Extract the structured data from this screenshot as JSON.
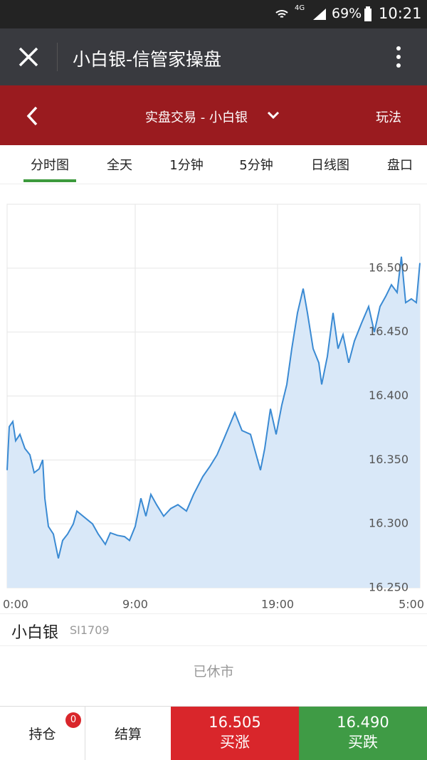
{
  "status_bar": {
    "network": "4G",
    "battery": "69%",
    "time": "10:21"
  },
  "app_bar": {
    "title": "小白银-信管家操盘"
  },
  "header": {
    "title": "实盘交易 - 小白银",
    "action": "玩法"
  },
  "tabs": [
    "分时图",
    "全天",
    "1分钟",
    "5分钟",
    "日线图",
    "盘口"
  ],
  "chart_data": {
    "type": "area",
    "x": [
      0,
      0.15,
      0.4,
      0.6,
      0.9,
      1.25,
      1.6,
      1.9,
      2.25,
      2.5,
      2.65,
      2.9,
      3.25,
      3.6,
      3.9,
      4.25,
      4.65,
      4.9,
      6,
      6.4,
      6.9,
      7.25,
      7.75,
      8.25,
      8.6,
      9,
      9.4,
      9.75,
      10.1,
      10.5,
      11,
      11.5,
      12,
      12.6,
      13.1,
      13.75,
      14.25,
      14.75,
      15.25,
      16,
      16.5,
      17.1,
      17.5,
      17.8,
      18.1,
      18.5,
      18.9,
      19.3,
      19.65,
      20,
      20.4,
      20.8,
      21.1,
      21.5,
      21.9,
      22.1,
      22.5,
      22.9,
      23.25,
      23.6,
      24,
      24.4,
      24.9,
      25.4,
      25.8,
      26.2,
      26.6,
      27,
      27.4,
      27.7,
      28,
      28.4,
      28.75,
      29
    ],
    "values": [
      16.342,
      16.376,
      16.38,
      16.365,
      16.37,
      16.359,
      16.354,
      16.34,
      16.343,
      16.35,
      16.32,
      16.298,
      16.292,
      16.273,
      16.287,
      16.292,
      16.3,
      16.31,
      16.3,
      16.292,
      16.284,
      16.293,
      16.291,
      16.29,
      16.287,
      16.298,
      16.32,
      16.306,
      16.323,
      16.315,
      16.306,
      16.312,
      16.315,
      16.31,
      16.323,
      16.337,
      16.345,
      16.354,
      16.367,
      16.387,
      16.373,
      16.37,
      16.354,
      16.342,
      16.359,
      16.39,
      16.37,
      16.393,
      16.409,
      16.437,
      16.465,
      16.484,
      16.465,
      16.437,
      16.426,
      16.409,
      16.431,
      16.465,
      16.437,
      16.448,
      16.426,
      16.443,
      16.457,
      16.47,
      16.45,
      16.47,
      16.478,
      16.487,
      16.481,
      16.509,
      16.473,
      16.476,
      16.473,
      16.504
    ],
    "color": "#3a8ad3",
    "fill": "#d9e8f8",
    "xlim": [
      0,
      29
    ],
    "ylim": [
      16.25,
      16.55
    ],
    "xticks": [
      {
        "value": 0,
        "label": "0:00"
      },
      {
        "value": 9,
        "label": "9:00"
      },
      {
        "value": 19,
        "label": "19:00"
      },
      {
        "value": 29,
        "label": "5:00"
      }
    ],
    "yticks": [
      {
        "value": 16.25,
        "label": "16.250"
      },
      {
        "value": 16.3,
        "label": "16.300"
      },
      {
        "value": 16.35,
        "label": "16.350"
      },
      {
        "value": 16.4,
        "label": "16.400"
      },
      {
        "value": 16.45,
        "label": "16.450"
      },
      {
        "value": 16.5,
        "label": "16.500"
      }
    ],
    "grid": true
  },
  "instrument": {
    "name": "小白银",
    "code": "SI1709",
    "status": "已休市"
  },
  "bottom_bar": {
    "position": "持仓",
    "position_count": 0,
    "settle": "结算",
    "buy_up_price": "16.505",
    "buy_up": "买涨",
    "buy_down_price": "16.490",
    "buy_down": "买跌"
  }
}
